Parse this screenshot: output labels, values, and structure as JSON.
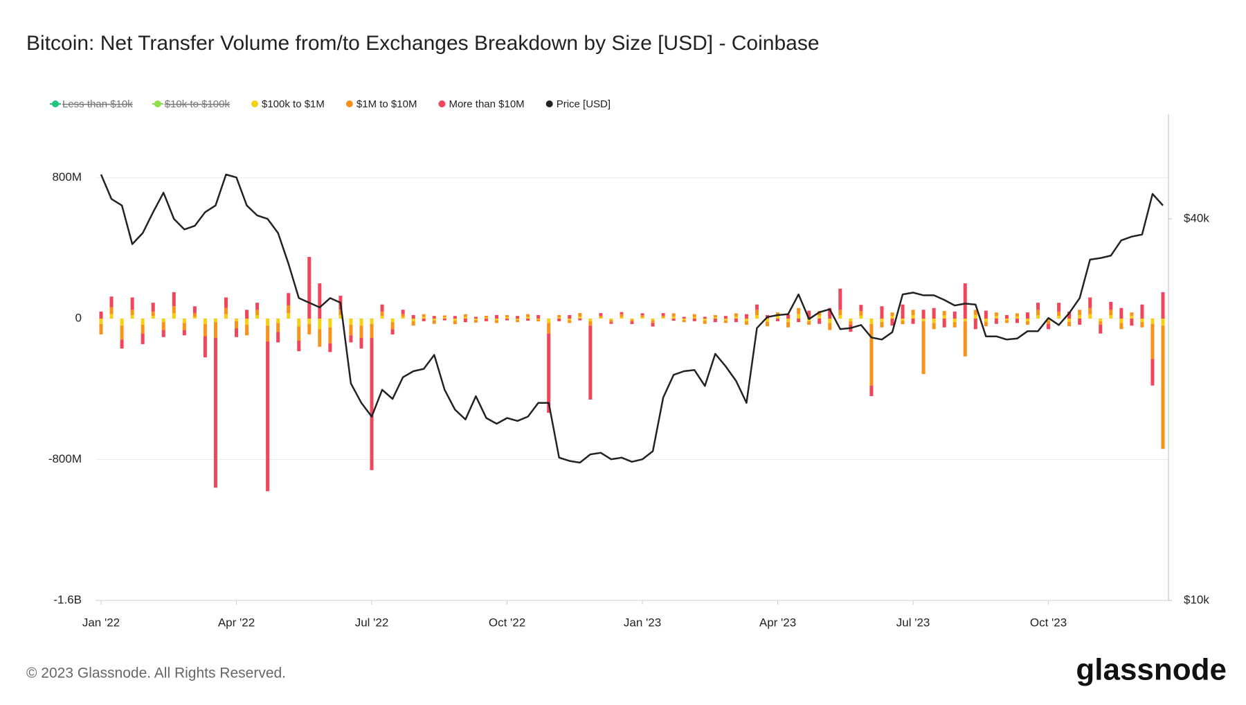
{
  "chart_data": {
    "type": "bar",
    "title": "Bitcoin: Net Transfer Volume from/to Exchanges Breakdown by Size [USD] - Coinbase",
    "footer": "© 2023 Glassnode. All Rights Reserved.",
    "brand": "glassnode",
    "stacked": true,
    "categories": [
      "Jan '22",
      null,
      null,
      null,
      null,
      null,
      null,
      null,
      null,
      null,
      null,
      null,
      null,
      "Apr '22",
      null,
      null,
      null,
      null,
      null,
      null,
      null,
      null,
      null,
      null,
      null,
      null,
      "Jul '22",
      null,
      null,
      null,
      null,
      null,
      null,
      null,
      null,
      null,
      null,
      null,
      null,
      "Oct '22",
      null,
      null,
      null,
      null,
      null,
      null,
      null,
      null,
      null,
      null,
      null,
      null,
      "Jan '23",
      null,
      null,
      null,
      null,
      null,
      null,
      null,
      null,
      null,
      null,
      null,
      null,
      "Apr '23",
      null,
      null,
      null,
      null,
      null,
      null,
      null,
      null,
      null,
      null,
      null,
      null,
      "Jul '23",
      null,
      null,
      null,
      null,
      null,
      null,
      null,
      null,
      null,
      null,
      null,
      null,
      "Oct '23",
      null,
      null,
      null,
      null,
      null,
      null,
      null,
      null,
      null,
      null,
      null
    ],
    "ylim": [
      -1600,
      1160
    ],
    "yticks": [
      {
        "value": -1600,
        "label": "-1.6B"
      },
      {
        "value": -800,
        "label": "-800M"
      },
      0,
      {
        "value": 800,
        "label": "800M"
      }
    ],
    "y2lim": [
      10000,
      58500
    ],
    "y2log": true,
    "y2ticks": [
      {
        "value": 10000,
        "label": "$10k"
      },
      {
        "value": 40000,
        "label": "$40k"
      }
    ],
    "grid": true,
    "series": [
      {
        "name": "Less than $10k",
        "color": "#1ec97a",
        "visible": false
      },
      {
        "name": "$10k to $100k",
        "color": "#8ee04a",
        "visible": false
      },
      {
        "name": "$100k to $1M",
        "color": "#f5d10f",
        "values": [
          -30,
          25,
          -40,
          20,
          -35,
          15,
          -20,
          30,
          -25,
          10,
          -30,
          -20,
          25,
          -15,
          -35,
          20,
          -40,
          -25,
          30,
          -45,
          -30,
          -60,
          -50,
          20,
          -35,
          -40,
          -30,
          15,
          -20,
          10,
          -15,
          10,
          -10,
          8,
          -12,
          10,
          -8,
          6,
          -10,
          8,
          -8,
          10,
          -6,
          -25,
          8,
          -10,
          12,
          -15,
          6,
          -8,
          10,
          -6,
          8,
          -10,
          6,
          12,
          -8,
          10,
          -12,
          8,
          -10,
          12,
          -15,
          20,
          -18,
          15,
          -20,
          25,
          -15,
          18,
          -25,
          20,
          -15,
          18,
          -30,
          -20,
          15,
          -12,
          20,
          -15,
          -25,
          18,
          -20,
          -15,
          20,
          -18,
          15,
          -10,
          12,
          -15,
          20,
          -12,
          15,
          -18,
          20,
          25,
          -15,
          20,
          -25,
          15,
          -20,
          -30,
          -40
        ]
      },
      {
        "name": "$1M to $10M",
        "color": "#f7931a",
        "values": [
          -60,
          40,
          -80,
          30,
          -50,
          25,
          -45,
          40,
          -40,
          20,
          -70,
          -90,
          35,
          -40,
          -60,
          30,
          -90,
          -50,
          45,
          -80,
          -60,
          -100,
          -90,
          30,
          -60,
          -70,
          -80,
          25,
          -40,
          15,
          -25,
          15,
          -20,
          10,
          -20,
          15,
          -15,
          10,
          -15,
          12,
          -12,
          15,
          -10,
          -60,
          12,
          -15,
          20,
          -25,
          10,
          -12,
          15,
          -10,
          12,
          -15,
          10,
          18,
          -12,
          15,
          -18,
          12,
          -15,
          18,
          -20,
          30,
          -25,
          20,
          -30,
          35,
          -20,
          25,
          -40,
          30,
          -20,
          25,
          -350,
          -30,
          20,
          -20,
          30,
          -300,
          -35,
          25,
          -30,
          -200,
          30,
          -25,
          20,
          -15,
          18,
          -20,
          30,
          -18,
          25,
          -25,
          30,
          35,
          -20,
          30,
          -35,
          20,
          -30,
          -200,
          -700
        ]
      },
      {
        "name": "More than $10M",
        "color": "#f0455a",
        "values": [
          40,
          60,
          -50,
          70,
          -60,
          50,
          -40,
          80,
          -30,
          40,
          -120,
          -850,
          60,
          -50,
          50,
          40,
          -850,
          -60,
          70,
          -60,
          350,
          200,
          -50,
          80,
          -40,
          -60,
          -750,
          40,
          -30,
          25,
          20,
          -15,
          15,
          -10,
          15,
          -20,
          10,
          -15,
          20,
          -10,
          15,
          -12,
          20,
          -450,
          -15,
          20,
          -10,
          -420,
          15,
          -10,
          12,
          -15,
          10,
          -20,
          15,
          -12,
          10,
          -15,
          10,
          -20,
          15,
          -20,
          25,
          30,
          20,
          -15,
          25,
          -20,
          45,
          -30,
          60,
          120,
          -40,
          35,
          -60,
          70,
          -40,
          80,
          -30,
          50,
          60,
          -50,
          40,
          200,
          -60,
          45,
          -30,
          20,
          -25,
          35,
          40,
          -30,
          50,
          40,
          -35,
          60,
          -50,
          45,
          60,
          -40,
          80,
          -150,
          150
        ]
      },
      {
        "name": "Price [USD]",
        "color": "#222222",
        "type": "line",
        "axis": "y2",
        "values": [
          47000,
          43000,
          42000,
          36500,
          38000,
          41000,
          44000,
          40000,
          38500,
          39000,
          41000,
          42000,
          47000,
          46500,
          42000,
          40500,
          40000,
          38000,
          34000,
          30000,
          29500,
          29000,
          30000,
          29500,
          22000,
          20500,
          19500,
          21500,
          20800,
          22500,
          23000,
          23200,
          24400,
          21500,
          20000,
          19300,
          21000,
          19400,
          19000,
          19400,
          19200,
          19500,
          20500,
          20500,
          16800,
          16600,
          16500,
          17000,
          17100,
          16700,
          16800,
          16550,
          16700,
          17200,
          20900,
          22700,
          23000,
          23100,
          21800,
          24500,
          23400,
          22200,
          20500,
          26900,
          28000,
          28200,
          28300,
          30400,
          27800,
          28500,
          28800,
          26800,
          26900,
          27200,
          26000,
          25800,
          26500,
          30400,
          30600,
          30300,
          30300,
          29800,
          29200,
          29400,
          29300,
          26100,
          26100,
          25800,
          25900,
          26600,
          26600,
          27900,
          27200,
          28400,
          30000,
          34500,
          34700,
          35000,
          37000,
          37500,
          37800,
          43800,
          42000
        ]
      }
    ]
  }
}
